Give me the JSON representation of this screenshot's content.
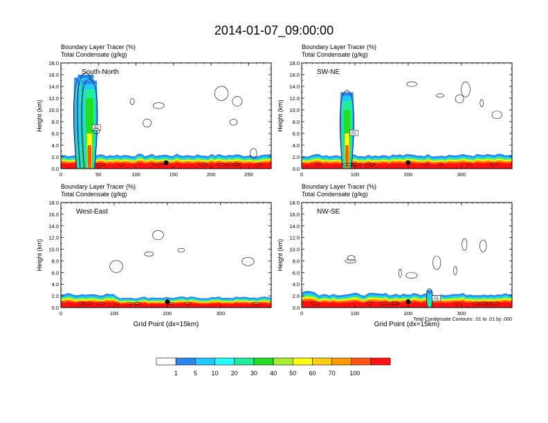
{
  "title": "2014-01-07_09:00:00",
  "panel_subtitle_1": "Boundary Layer Tracer   (%)",
  "panel_subtitle_2": "Total Condensate   (g/kg)",
  "ylabel": "Height (km)",
  "xlabel": "Grid Point (dx=15km)",
  "contour_note": "Total Condensate Contours: .01 to .01 by .000",
  "contour_label": ".01",
  "colors": [
    "#ffffff",
    "#2a87f0",
    "#22c8ff",
    "#22ffff",
    "#22ee99",
    "#22dd22",
    "#aaee33",
    "#ffff11",
    "#ffcc11",
    "#ff9900",
    "#ff5511",
    "#ff1111"
  ],
  "colorbar_labels": [
    "1",
    "5",
    "10",
    "20",
    "30",
    "40",
    "50",
    "60",
    "70",
    "100"
  ],
  "chart_data": [
    {
      "type": "heatmap",
      "name": "South-North",
      "xticks": [
        0,
        50,
        100,
        150,
        200,
        250
      ],
      "xlim": [
        0,
        280
      ],
      "yticks": [
        "0.0",
        "2.0",
        "4.0",
        "6.0",
        "8.0",
        "10.0",
        "12.0",
        "14.0",
        "16.0",
        "18.0"
      ],
      "ylim": [
        0,
        18
      ],
      "marker": {
        "x": 140,
        "y": 1.0
      },
      "plume": [
        {
          "x": 28,
          "top": 15.5
        },
        {
          "x": 33,
          "top": 16.0
        },
        {
          "x": 38,
          "top": 15.0
        }
      ]
    },
    {
      "type": "heatmap",
      "name": "SW-NE",
      "xticks": [
        0,
        100,
        200,
        300
      ],
      "xlim": [
        0,
        395
      ],
      "yticks": [
        "0.0",
        "2.0",
        "4.0",
        "6.0",
        "8.0",
        "10.0",
        "12.0",
        "14.0",
        "16.0",
        "18.0"
      ],
      "ylim": [
        0,
        18
      ],
      "marker": {
        "x": 200,
        "y": 1.0
      },
      "plume": [
        {
          "x": 85,
          "top": 13.0
        }
      ]
    },
    {
      "type": "heatmap",
      "name": "West-East",
      "xticks": [
        0,
        100,
        200,
        300
      ],
      "xlim": [
        0,
        395
      ],
      "yticks": [
        "0.0",
        "2.0",
        "4.0",
        "6.0",
        "8.0",
        "10.0",
        "12.0",
        "14.0",
        "16.0",
        "18.0"
      ],
      "ylim": [
        0,
        18
      ],
      "marker": {
        "x": 200,
        "y": 1.0
      },
      "plume": []
    },
    {
      "type": "heatmap",
      "name": "NW-SE",
      "xticks": [
        0,
        100,
        200,
        300
      ],
      "xlim": [
        0,
        395
      ],
      "yticks": [
        "0.0",
        "2.0",
        "4.0",
        "6.0",
        "8.0",
        "10.0",
        "12.0",
        "14.0",
        "16.0",
        "18.0"
      ],
      "ylim": [
        0,
        18
      ],
      "marker": {
        "x": 200,
        "y": 1.0
      },
      "plume": [
        {
          "x": 240,
          "top": 3.0
        }
      ]
    }
  ]
}
